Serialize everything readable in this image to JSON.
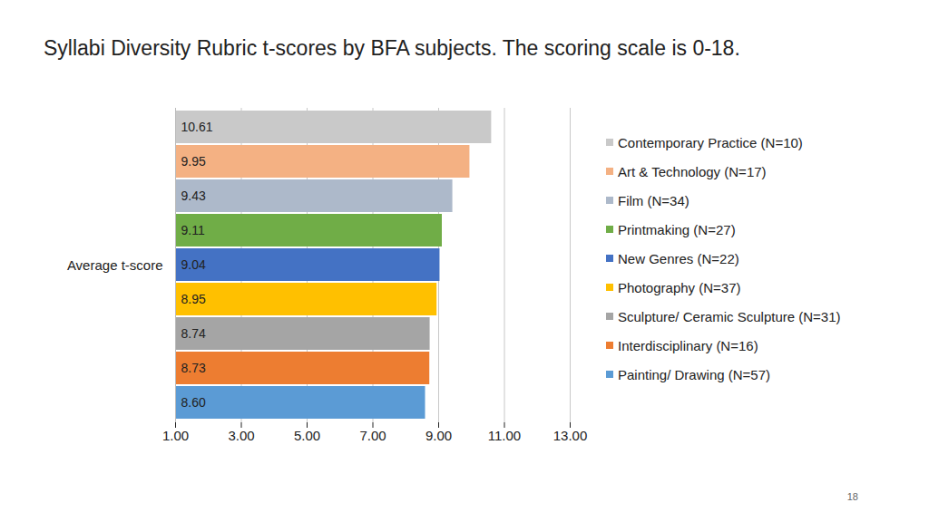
{
  "chart_data": {
    "type": "bar",
    "orientation": "horizontal",
    "title": "Syllabi Diversity Rubric t-scores by BFA subjects. The scoring scale is 0-18.",
    "categories": [
      "Average t-score"
    ],
    "series": [
      {
        "name": "Contemporary Practice (N=10)",
        "color": "#c9c9c9",
        "values": [
          10.61
        ],
        "value_labels": [
          "10.61"
        ]
      },
      {
        "name": "Art & Technology (N=17)",
        "color": "#f4b183",
        "values": [
          9.95
        ],
        "value_labels": [
          "9.95"
        ]
      },
      {
        "name": "Film (N=34)",
        "color": "#adb9ca",
        "values": [
          9.43
        ],
        "value_labels": [
          "9.43"
        ]
      },
      {
        "name": "Printmaking (N=27)",
        "color": "#70ad47",
        "values": [
          9.11
        ],
        "value_labels": [
          "9.11"
        ]
      },
      {
        "name": "New Genres (N=22)",
        "color": "#4472c4",
        "values": [
          9.04
        ],
        "value_labels": [
          "9.04"
        ]
      },
      {
        "name": "Photography (N=37)",
        "color": "#ffc000",
        "values": [
          8.95
        ],
        "value_labels": [
          "8.95"
        ]
      },
      {
        "name": "Sculpture/ Ceramic Sculpture (N=31)",
        "color": "#a5a5a5",
        "values": [
          8.74
        ],
        "value_labels": [
          "8.74"
        ]
      },
      {
        "name": "Interdisciplinary (N=16)",
        "color": "#ed7d31",
        "values": [
          8.73
        ],
        "value_labels": [
          "8.73"
        ]
      },
      {
        "name": "Painting/ Drawing (N=57)",
        "color": "#5b9bd5",
        "values": [
          8.6
        ],
        "value_labels": [
          "8.60"
        ]
      }
    ],
    "xlim": [
      1,
      13
    ],
    "xticks": [
      {
        "value": 1,
        "label": "1.00"
      },
      {
        "value": 3,
        "label": "3.00"
      },
      {
        "value": 5,
        "label": "5.00"
      },
      {
        "value": 7,
        "label": "7.00"
      },
      {
        "value": 9,
        "label": "9.00"
      },
      {
        "value": 11,
        "label": "11.00"
      },
      {
        "value": 13,
        "label": "13.00"
      }
    ],
    "grid": true,
    "data_labels": true,
    "legend": "right",
    "annotations": [
      "18"
    ]
  }
}
